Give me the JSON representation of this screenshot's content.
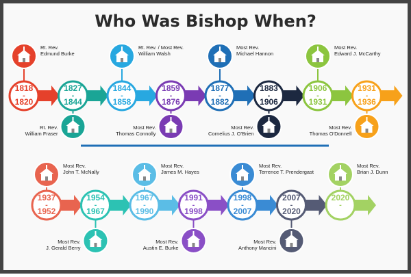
{
  "title": "Who Was Bishop When?",
  "separator": "-",
  "rows": [
    {
      "nodes": [
        {
          "start": "1818",
          "end": "1820",
          "rank": "Rt. Rev.",
          "name": "Edmund Burke",
          "position": "above",
          "color": "#e5412b"
        },
        {
          "start": "1827",
          "end": "1844",
          "rank": "Rt. Rev.",
          "name": "William Fraser",
          "position": "below",
          "color": "#1aa596"
        },
        {
          "start": "1844",
          "end": "1858",
          "rank": "Rt. Rev. / Most Rev.",
          "name": "William Walsh",
          "position": "above",
          "color": "#28a8e0"
        },
        {
          "start": "1859",
          "end": "1876",
          "rank": "Most Rev.",
          "name": "Thomas Connolly",
          "position": "below",
          "color": "#7a3bb3"
        },
        {
          "start": "1877",
          "end": "1882",
          "rank": "Most Rev.",
          "name": "Michael Hannon",
          "position": "above",
          "color": "#1f6fb6"
        },
        {
          "start": "1883",
          "end": "1906",
          "rank": "Most Rev.",
          "name": "Cornelius J. O'Brien",
          "position": "below",
          "color": "#1c2840"
        },
        {
          "start": "1906",
          "end": "1931",
          "rank": "Most Rev.",
          "name": "Edward J. McCarthy",
          "position": "above",
          "color": "#8cc53f"
        },
        {
          "start": "1931",
          "end": "1936",
          "rank": "Most Rev.",
          "name": "Thomas O'Donnell",
          "position": "below",
          "color": "#f7a11a"
        }
      ]
    },
    {
      "nodes": [
        {
          "start": "1937",
          "end": "1952",
          "rank": "Most Rev.",
          "name": "John T. McNally",
          "position": "above",
          "color": "#e8644f"
        },
        {
          "start": "1954",
          "end": "1967",
          "rank": "Most Rev.",
          "name": "J. Gerald Berry",
          "position": "below",
          "color": "#2cc2b3"
        },
        {
          "start": "1967",
          "end": "1990",
          "rank": "Most Rev.",
          "name": "James M. Hayes",
          "position": "above",
          "color": "#5bbde6"
        },
        {
          "start": "1991",
          "end": "1998",
          "rank": "Most Rev.",
          "name": "Austin E. Burke",
          "position": "below",
          "color": "#8a4fc6"
        },
        {
          "start": "1998",
          "end": "2007",
          "rank": "Most Rev.",
          "name": "Terrence T. Prendergast",
          "position": "above",
          "color": "#3a8bd4"
        },
        {
          "start": "2007",
          "end": "2020",
          "rank": "Most Rev.",
          "name": "Anthony Mancini",
          "position": "below",
          "color": "#555b75"
        },
        {
          "start": "2020",
          "rank": "Most Rev.",
          "name": "Brian J. Dunn",
          "position": "above",
          "color": "#a3d263"
        }
      ]
    }
  ]
}
